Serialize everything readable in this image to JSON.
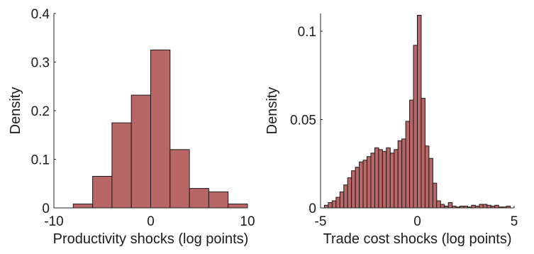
{
  "chart_data": [
    {
      "type": "bar",
      "subtype": "histogram",
      "xlabel": "Productivity shocks (log points)",
      "ylabel": "Density",
      "xlim": [
        -10,
        10
      ],
      "ylim": [
        0,
        0.4
      ],
      "xticks": [
        -10,
        0,
        10
      ],
      "xtick_labels": [
        "-10",
        "0",
        "10"
      ],
      "yticks": [
        0,
        0.1,
        0.2,
        0.3,
        0.4
      ],
      "ytick_labels": [
        "0",
        "0.1",
        "0.2",
        "0.3",
        "0.4"
      ],
      "bin_edges": [
        -8,
        -6,
        -4,
        -2,
        0,
        2,
        4,
        6,
        8,
        10
      ],
      "values": [
        0.008,
        0.065,
        0.175,
        0.232,
        0.325,
        0.12,
        0.04,
        0.033,
        0.008
      ],
      "bar_color": "#b86666",
      "edge_color": "#1a1a1a",
      "grid": false
    },
    {
      "type": "bar",
      "subtype": "histogram",
      "xlabel": "Trade cost shocks (log points)",
      "ylabel": "Density",
      "xlim": [
        -5,
        5
      ],
      "ylim": [
        0,
        0.11
      ],
      "xticks": [
        -5,
        0,
        5
      ],
      "xtick_labels": [
        "-5",
        "0",
        "5"
      ],
      "yticks": [
        0,
        0.05,
        0.1
      ],
      "ytick_labels": [
        "0",
        "0.05",
        "0.1"
      ],
      "bin_edges": [
        -4.8,
        -4.6,
        -4.4,
        -4.2,
        -4.0,
        -3.8,
        -3.6,
        -3.4,
        -3.2,
        -3.0,
        -2.8,
        -2.6,
        -2.4,
        -2.2,
        -2.0,
        -1.8,
        -1.6,
        -1.4,
        -1.2,
        -1.0,
        -0.8,
        -0.6,
        -0.4,
        -0.2,
        0.0,
        0.2,
        0.4,
        0.6,
        0.8,
        1.0,
        1.2,
        1.4,
        1.6,
        1.8,
        2.0,
        2.2,
        2.4,
        2.6,
        2.8,
        3.0,
        3.2,
        3.4,
        3.6,
        3.8,
        4.0,
        4.2,
        4.4,
        4.6,
        4.8
      ],
      "values": [
        0.0015,
        0.003,
        0.004,
        0.006,
        0.009,
        0.013,
        0.017,
        0.021,
        0.023,
        0.026,
        0.027,
        0.029,
        0.031,
        0.034,
        0.033,
        0.032,
        0.034,
        0.031,
        0.033,
        0.038,
        0.039,
        0.049,
        0.061,
        0.092,
        0.109,
        0.062,
        0.035,
        0.028,
        0.014,
        0.004,
        0.002,
        0.001,
        0.003,
        0.001,
        0.0005,
        0.001,
        0.001,
        0.0005,
        0.0015,
        0.001,
        0.002,
        0.002,
        0.0015,
        0.001,
        0.0015,
        0.0005,
        0.0005,
        0.001
      ],
      "bar_color": "#b86666",
      "edge_color": "#1a1a1a",
      "grid": false
    }
  ]
}
